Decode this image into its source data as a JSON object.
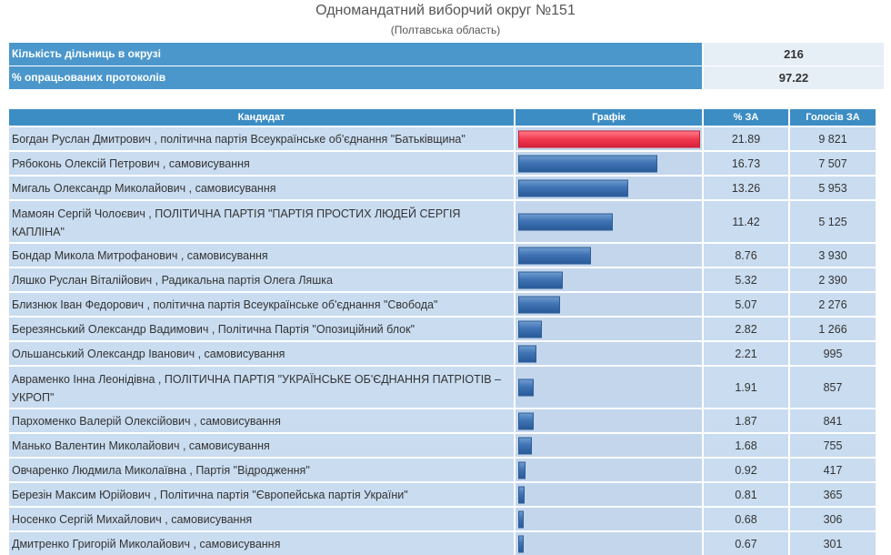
{
  "page": {
    "title": "Одномандатний виборчий округ №151",
    "subtitle": "(Полтавська область)"
  },
  "stats": [
    {
      "label": "Кількість дільниць в окрузі",
      "value": "216"
    },
    {
      "label": "% опрацьованих протоколів",
      "value": "97.22"
    }
  ],
  "table": {
    "headers": {
      "candidate": "Кандидат",
      "graph": "Графік",
      "pct": "% ЗА",
      "votes": "Голосів ЗА"
    }
  },
  "colors": {
    "leader_bar": "#f0384e",
    "bar": "#3f73b3",
    "header": "#3c8dc4",
    "row": "#c9dcf0"
  },
  "chart_data": {
    "type": "bar",
    "orientation": "horizontal",
    "scale_max": 21.89,
    "categories": [
      "Богдан Руслан Дмитрович , політична партія Всеукраїнське об'єднання \"Батьківщина\"",
      "Рябоконь Олексій Петрович , самовисування",
      "Мигаль Олександр Миколайович , самовисування",
      "Мамоян Сергій Чолоєвич , ПОЛІТИЧНА ПАРТІЯ \"ПАРТІЯ ПРОСТИХ ЛЮДЕЙ СЕРГІЯ КАПЛІНА\"",
      "Бондар Микола Митрофанович , самовисування",
      "Ляшко Руслан Віталійович , Радикальна партія Олега Ляшка",
      "Близнюк Іван Федорович , політична партія Всеукраїнське об'єднання \"Свобода\"",
      "Березянський Олександр Вадимович , Політична Партія \"Опозиційний блок\"",
      "Ольшанський Олександр Іванович , самовисування",
      "Авраменко Інна Леонідівна , ПОЛІТИЧНА ПАРТІЯ \"УКРАЇНСЬКЕ ОБ'ЄДНАННЯ ПАТРІОТІВ – УКРОП\"",
      "Пархоменко Валерій Олексійович , самовисування",
      "Манько Валентин Миколайович , самовисування",
      "Овчаренко Людмила Миколаївна , Партія \"Відродження\"",
      "Березін Максим Юрійович , Політична партія \"Європейська партія України\"",
      "Носенко Сергій Михайлович , самовисування",
      "Дмитренко Григорій Миколайович , самовисування"
    ],
    "series": [
      {
        "name": "% ЗА",
        "values": [
          21.89,
          16.73,
          13.26,
          11.42,
          8.76,
          5.32,
          5.07,
          2.82,
          2.21,
          1.91,
          1.87,
          1.68,
          0.92,
          0.81,
          0.68,
          0.67
        ]
      },
      {
        "name": "Голосів ЗА",
        "values": [
          "9 821",
          "7 507",
          "5 953",
          "5 125",
          "3 930",
          "2 390",
          "2 276",
          "1 266",
          "995",
          "857",
          "841",
          "755",
          "417",
          "365",
          "306",
          "301"
        ]
      }
    ]
  }
}
